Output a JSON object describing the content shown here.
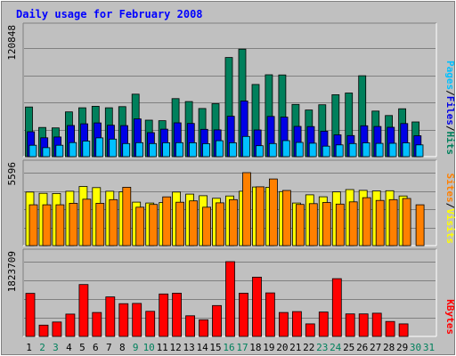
{
  "chart_data": {
    "type": "bar",
    "title": "Daily usage for February 2008",
    "categories": [
      "1",
      "2",
      "3",
      "4",
      "5",
      "6",
      "7",
      "8",
      "9",
      "10",
      "11",
      "12",
      "13",
      "14",
      "15",
      "16",
      "17",
      "18",
      "19",
      "20",
      "21",
      "22",
      "23",
      "24",
      "25",
      "26",
      "27",
      "28",
      "29",
      "30",
      "31"
    ],
    "weekend_days": [
      "2",
      "3",
      "9",
      "10",
      "16",
      "17",
      "23",
      "24",
      "30",
      "31"
    ],
    "colors": {
      "title": "#0000ff",
      "hits": "#00805c",
      "files": "#0000e6",
      "pages": "#00c0ff",
      "visits": "#ffff00",
      "sites": "#ff8000",
      "kbytes": "#ff0000",
      "weekday_label": "#000000",
      "weekend_label": "#00805c"
    },
    "panels": [
      {
        "id": "traffic",
        "ymax_label": "120848",
        "ylim": [
          0,
          120848
        ],
        "legend": [
          "Pages",
          "/",
          "Files",
          "/",
          "Hits"
        ],
        "series": [
          {
            "name": "Hits",
            "values": [
              55300,
              32500,
              32000,
              49800,
              54400,
              56100,
              54400,
              55700,
              69500,
              40600,
              40000,
              64600,
              61300,
              53600,
              58900,
              110300,
              119700,
              80300,
              91100,
              90900,
              58100,
              51900,
              57700,
              68900,
              70800,
              90000,
              50700,
              45800,
              53300,
              38600,
              null
            ]
          },
          {
            "name": "Files",
            "values": [
              27700,
              21000,
              21900,
              34700,
              36600,
              37500,
              35000,
              34600,
              42000,
              26700,
              30600,
              37600,
              36900,
              30400,
              29800,
              45000,
              61900,
              29700,
              44800,
              44000,
              33700,
              33500,
              28300,
              24300,
              23500,
              34400,
              33600,
              32700,
              36800,
              23300,
              null
            ]
          },
          {
            "name": "Pages",
            "values": [
              12700,
              10000,
              12700,
              15700,
              17300,
              20900,
              19500,
              14600,
              15600,
              14600,
              15500,
              15600,
              15500,
              14500,
              17700,
              15500,
              22500,
              12200,
              14600,
              17800,
              15800,
              15000,
              11700,
              13100,
              14600,
              15400,
              14800,
              14900,
              15400,
              13100,
              null
            ]
          }
        ]
      },
      {
        "id": "visits",
        "ymax_label": "5596",
        "ylim": [
          0,
          5596
        ],
        "legend": [
          "Sites",
          "/",
          "Visits"
        ],
        "series": [
          {
            "name": "Visits",
            "values": [
              4110,
              4010,
              4000,
              4170,
              4540,
              4450,
              4170,
              4130,
              3340,
              3270,
              3300,
              4110,
              3950,
              3830,
              3630,
              3810,
              4170,
              4500,
              4480,
              4140,
              3270,
              3900,
              3750,
              4120,
              4300,
              4240,
              4200,
              4210,
              3810,
              null,
              null
            ]
          },
          {
            "name": "Sites",
            "values": [
              3130,
              3130,
              3130,
              3250,
              3560,
              3250,
              3530,
              4480,
              2950,
              3160,
              3740,
              3330,
              3430,
              2950,
              3280,
              3530,
              5596,
              4510,
              5110,
              4230,
              3160,
              3220,
              3310,
              3190,
              3360,
              3680,
              3470,
              3530,
              3620,
              3130,
              null
            ]
          }
        ]
      },
      {
        "id": "kbytes",
        "ymax_label": "1823709",
        "ylim": [
          0,
          1823709
        ],
        "legend": [
          "KBytes"
        ],
        "series": [
          {
            "name": "KBytes",
            "values": [
              1050000,
              275000,
              352000,
              545000,
              1266000,
              583000,
              965000,
              799000,
              805000,
              612000,
              1036000,
              1056000,
              503000,
              405000,
              753000,
              1823709,
              1056000,
              1445000,
              1061000,
              583000,
              605000,
              307000,
              594000,
              1408000,
              550000,
              550000,
              566000,
              364000,
              307000,
              null,
              null
            ]
          }
        ]
      }
    ]
  }
}
